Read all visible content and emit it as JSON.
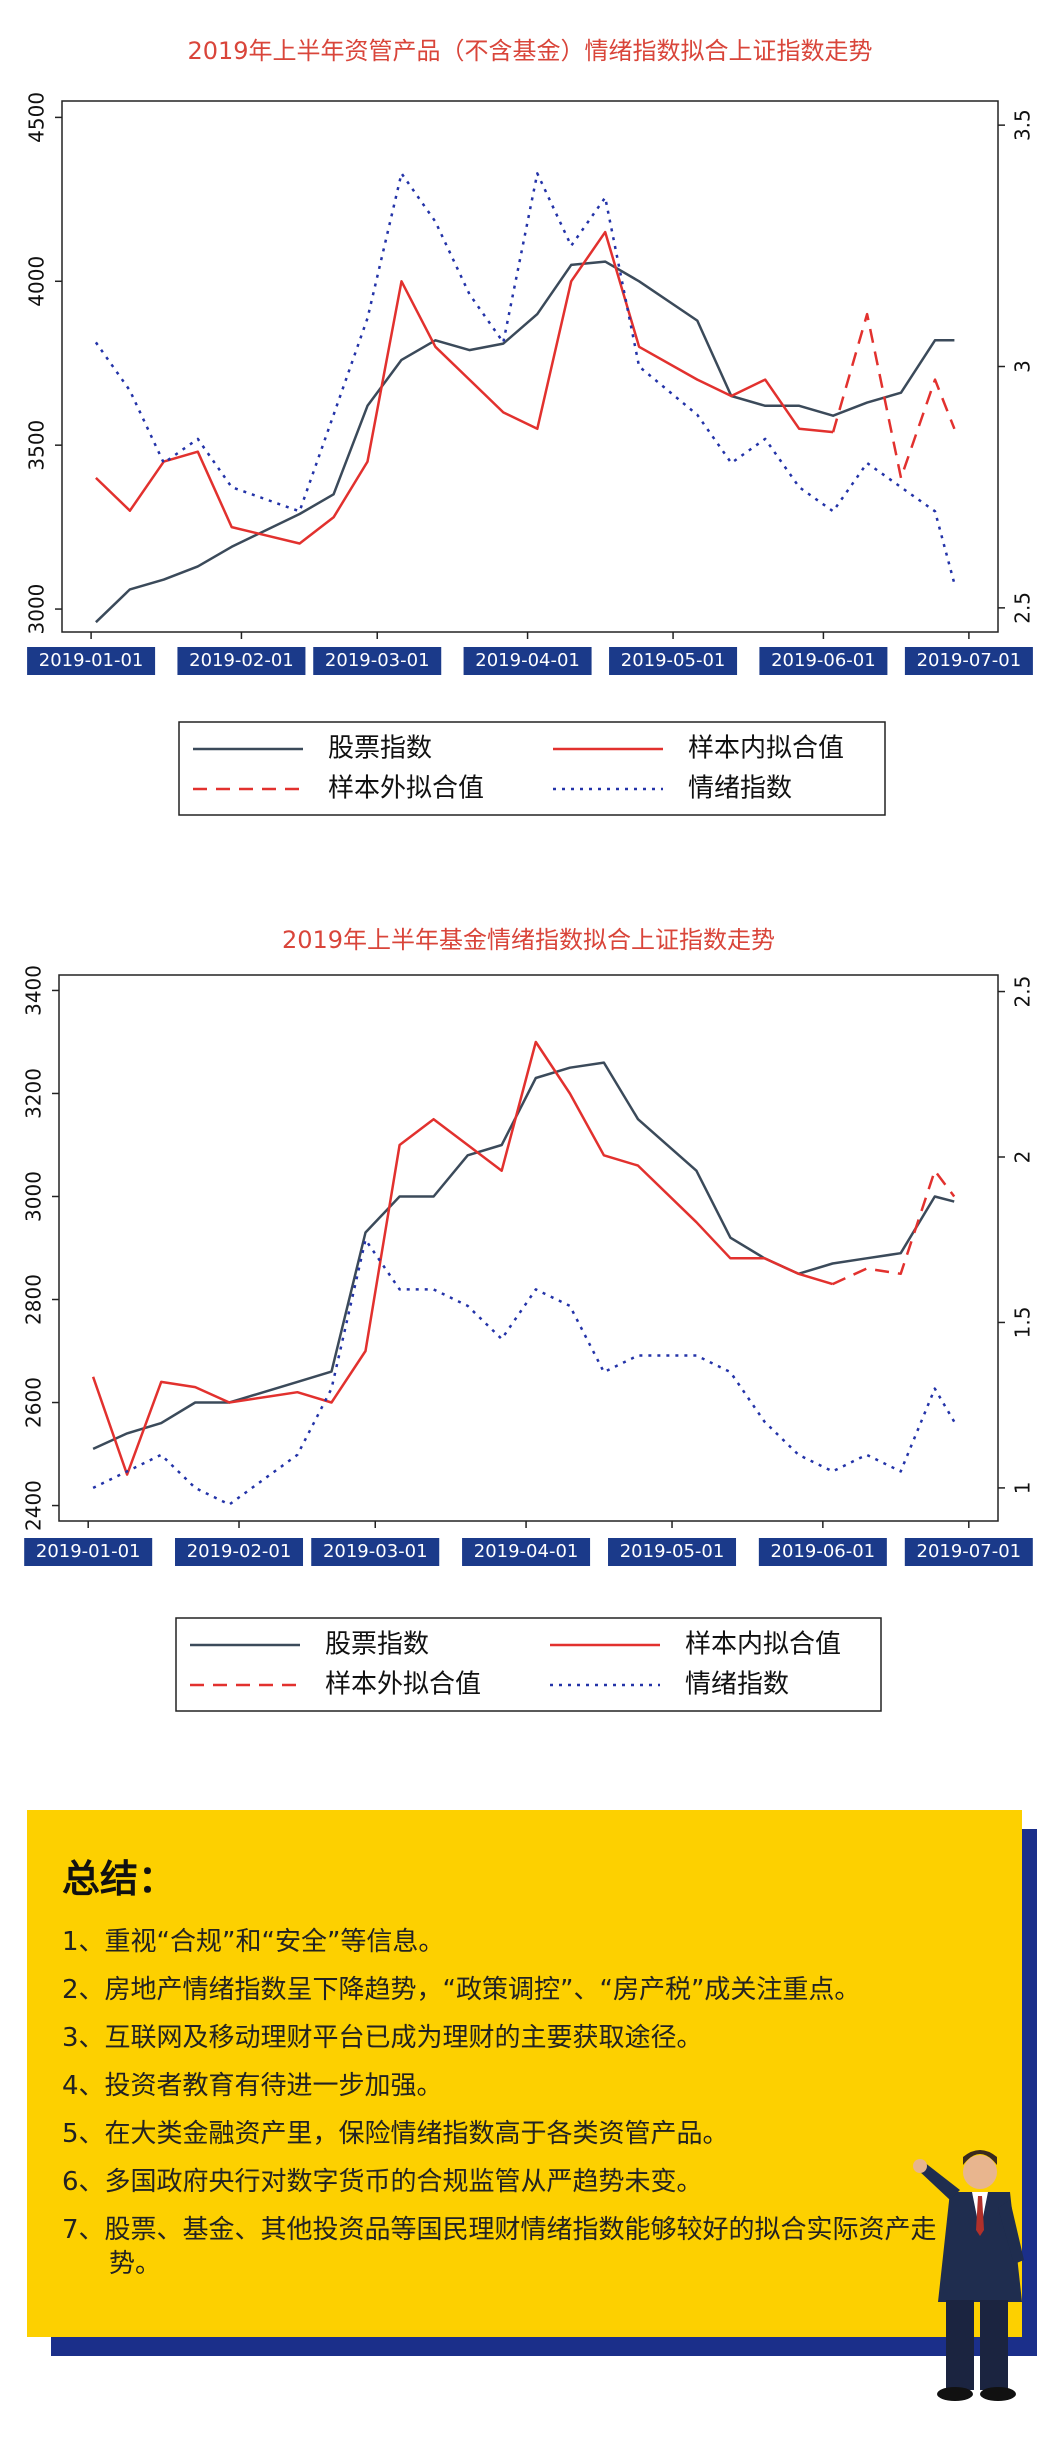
{
  "chart_data": [
    {
      "type": "line",
      "title": "2019年上半年资管产品（不含基金）情绪指数拟合上证指数走势",
      "x": [
        "2019-01-02",
        "2019-01-09",
        "2019-01-16",
        "2019-01-23",
        "2019-01-30",
        "2019-02-13",
        "2019-02-20",
        "2019-02-27",
        "2019-03-06",
        "2019-03-13",
        "2019-03-20",
        "2019-03-27",
        "2019-04-03",
        "2019-04-10",
        "2019-04-17",
        "2019-04-24",
        "2019-05-06",
        "2019-05-13",
        "2019-05-20",
        "2019-05-27",
        "2019-06-03",
        "2019-06-10",
        "2019-06-17",
        "2019-06-24",
        "2019-06-28"
      ],
      "series": [
        {
          "name": "股票指数",
          "color": "#3b4a5a",
          "line_style": "solid",
          "values": [
            2960,
            3060,
            3090,
            3130,
            3190,
            3290,
            3350,
            3620,
            3760,
            3820,
            3790,
            3810,
            3900,
            4050,
            4060,
            4000,
            3880,
            3650,
            3620,
            3620,
            3590,
            3630,
            3660,
            3820,
            3820
          ]
        },
        {
          "name": "样本内拟合值",
          "color": "#e2312e",
          "line_style": "solid",
          "values": [
            3400,
            3300,
            3450,
            3480,
            3250,
            3200,
            3280,
            3450,
            4000,
            3800,
            3700,
            3600,
            3550,
            4000,
            4150,
            3800,
            3700,
            3650,
            3700,
            3550,
            3540,
            null,
            null,
            null,
            null
          ]
        },
        {
          "name": "样本外拟合值",
          "color": "#e2312e",
          "line_style": "dashed",
          "values": [
            null,
            null,
            null,
            null,
            null,
            null,
            null,
            null,
            null,
            null,
            null,
            null,
            null,
            null,
            null,
            null,
            null,
            null,
            null,
            null,
            3540,
            3900,
            3400,
            3700,
            3550
          ]
        },
        {
          "name": "情绪指数",
          "color": "#2333a8",
          "line_style": "dotted",
          "axis": "y2",
          "values": [
            3.05,
            2.95,
            2.8,
            2.85,
            2.75,
            2.7,
            2.9,
            3.1,
            3.4,
            3.3,
            3.15,
            3.05,
            3.4,
            3.25,
            3.35,
            3.0,
            2.9,
            2.8,
            2.85,
            2.75,
            2.7,
            2.8,
            2.75,
            2.7,
            2.55
          ]
        }
      ],
      "xlim": [
        "2018-12-26",
        "2019-07-07"
      ],
      "xticks": [
        "2019-01-01",
        "2019-02-01",
        "2019-03-01",
        "2019-04-01",
        "2019-05-01",
        "2019-06-01",
        "2019-07-01"
      ],
      "ylim": [
        2930,
        4550
      ],
      "yticks": [
        3000,
        3500,
        4000,
        4500
      ],
      "y2lim": [
        2.45,
        3.55
      ],
      "y2ticks": [
        2.5,
        3,
        3.5
      ]
    },
    {
      "type": "line",
      "title": "2019年上半年基金情绪指数拟合上证指数走势",
      "x": [
        "2019-01-02",
        "2019-01-09",
        "2019-01-16",
        "2019-01-23",
        "2019-01-30",
        "2019-02-13",
        "2019-02-20",
        "2019-02-27",
        "2019-03-06",
        "2019-03-13",
        "2019-03-20",
        "2019-03-27",
        "2019-04-03",
        "2019-04-10",
        "2019-04-17",
        "2019-04-24",
        "2019-05-06",
        "2019-05-13",
        "2019-05-20",
        "2019-05-27",
        "2019-06-03",
        "2019-06-10",
        "2019-06-17",
        "2019-06-24",
        "2019-06-28"
      ],
      "series": [
        {
          "name": "股票指数",
          "color": "#3b4a5a",
          "line_style": "solid",
          "values": [
            2510,
            2540,
            2560,
            2600,
            2600,
            2640,
            2660,
            2930,
            3000,
            3000,
            3080,
            3100,
            3230,
            3250,
            3260,
            3150,
            3050,
            2920,
            2880,
            2850,
            2870,
            2880,
            2890,
            3000,
            2990
          ]
        },
        {
          "name": "样本内拟合值",
          "color": "#e2312e",
          "line_style": "solid",
          "values": [
            2650,
            2460,
            2640,
            2630,
            2600,
            2620,
            2600,
            2700,
            3100,
            3150,
            3100,
            3050,
            3300,
            3200,
            3080,
            3060,
            2950,
            2880,
            2880,
            2850,
            2830,
            null,
            null,
            null,
            null
          ]
        },
        {
          "name": "样本外拟合值",
          "color": "#e2312e",
          "line_style": "dashed",
          "values": [
            null,
            null,
            null,
            null,
            null,
            null,
            null,
            null,
            null,
            null,
            null,
            null,
            null,
            null,
            null,
            null,
            null,
            null,
            null,
            null,
            2830,
            2860,
            2850,
            3050,
            3000
          ]
        },
        {
          "name": "情绪指数",
          "color": "#2333a8",
          "line_style": "dotted",
          "axis": "y2",
          "values": [
            1.0,
            1.05,
            1.1,
            1.0,
            0.95,
            1.1,
            1.3,
            1.75,
            1.6,
            1.6,
            1.55,
            1.45,
            1.6,
            1.55,
            1.35,
            1.4,
            1.4,
            1.35,
            1.2,
            1.1,
            1.05,
            1.1,
            1.05,
            1.3,
            1.2
          ]
        }
      ],
      "xlim": [
        "2018-12-26",
        "2019-07-07"
      ],
      "xticks": [
        "2019-01-01",
        "2019-02-01",
        "2019-03-01",
        "2019-04-01",
        "2019-05-01",
        "2019-06-01",
        "2019-07-01"
      ],
      "ylim": [
        2370,
        3430
      ],
      "yticks": [
        2400,
        2600,
        2800,
        3000,
        3200,
        3400
      ],
      "y2lim": [
        0.9,
        2.55
      ],
      "y2ticks": [
        1,
        1.5,
        2,
        2.5
      ]
    }
  ],
  "summary": {
    "title": "总结：",
    "items": [
      "1、重视“合规”和“安全”等信息。",
      "2、房地产情绪指数呈下降趋势，“政策调控”、“房产税”成关注重点。",
      "3、互联网及移动理财平台已成为理财的主要获取途径。",
      "4、投资者教育有待进一步加强。",
      "5、在大类金融资产里，保险情绪指数高于各类资管产品。",
      "6、多国政府央行对数字货币的合规监管从严趋势未变。",
      "7、股票、基金、其他投资品等国民理财情绪指数能够较好的拟合实际资产走势。"
    ]
  }
}
